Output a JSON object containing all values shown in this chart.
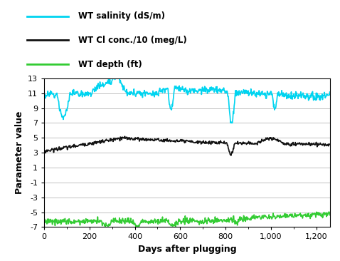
{
  "title": "",
  "xlabel": "Days after plugging",
  "ylabel": "Parameter value",
  "xlim": [
    0,
    1260
  ],
  "ylim": [
    -7,
    13
  ],
  "yticks": [
    -7,
    -5,
    -3,
    -1,
    1,
    3,
    5,
    7,
    9,
    11,
    13
  ],
  "xticks": [
    0,
    200,
    400,
    600,
    800,
    1000,
    1200
  ],
  "xtick_labels": [
    "0",
    "200",
    "400",
    "600",
    "800",
    "1,000",
    "1,200"
  ],
  "legend": [
    {
      "label": "WT salinity (dS/m)",
      "color": "#00d4f0",
      "lw": 1.2
    },
    {
      "label": "WT Cl conc./10 (meg/L)",
      "color": "#111111",
      "lw": 1.2
    },
    {
      "label": "WT depth (ft)",
      "color": "#33cc33",
      "lw": 1.2
    }
  ],
  "background_color": "#ffffff",
  "grid_color": "#aaaaaa"
}
